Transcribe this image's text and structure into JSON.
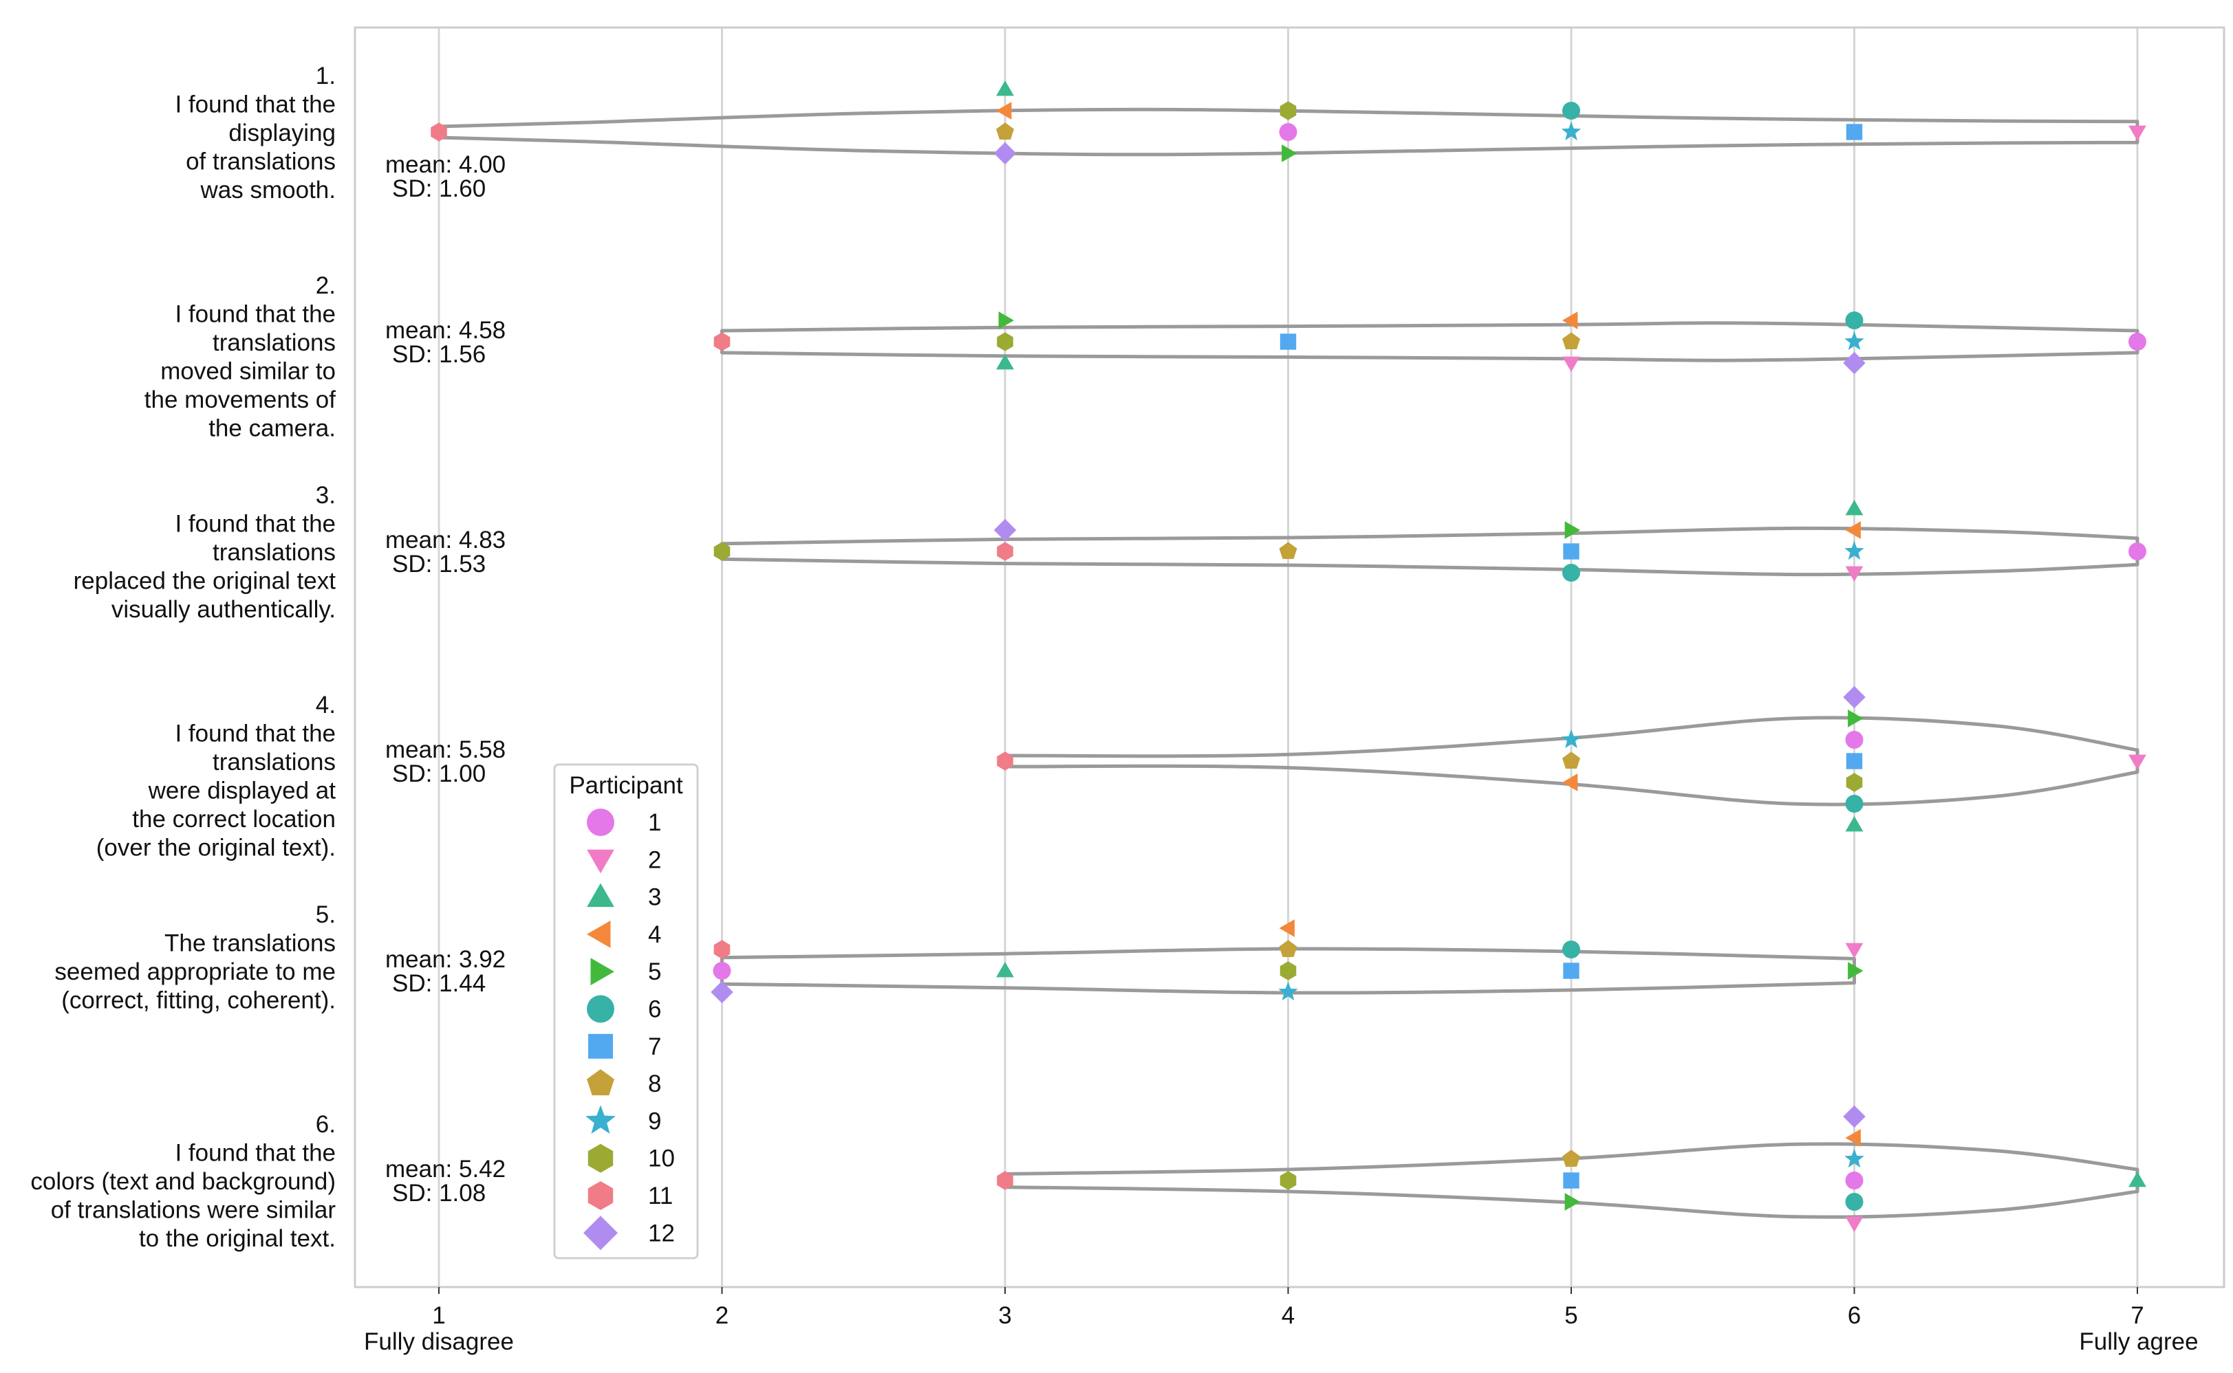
{
  "chart_data": {
    "type": "violin-strip",
    "xlim": [
      1,
      7
    ],
    "x_ticks": [
      1,
      2,
      3,
      4,
      5,
      6,
      7
    ],
    "x_end_labels": {
      "left": "Fully disagree",
      "right": "Fully agree"
    },
    "legend": {
      "title": "Participant",
      "placement": "bottom-left",
      "entries": [
        {
          "id": 1,
          "label": "1",
          "marker": "circle",
          "color": "#E478E8"
        },
        {
          "id": 2,
          "label": "2",
          "marker": "triangle-down",
          "color": "#F07CC8"
        },
        {
          "id": 3,
          "label": "3",
          "marker": "triangle-up",
          "color": "#3BB98C"
        },
        {
          "id": 4,
          "label": "4",
          "marker": "triangle-left",
          "color": "#F3883A"
        },
        {
          "id": 5,
          "label": "5",
          "marker": "triangle-right",
          "color": "#43B93B"
        },
        {
          "id": 6,
          "label": "6",
          "marker": "circle",
          "color": "#36B2A6"
        },
        {
          "id": 7,
          "label": "7",
          "marker": "square",
          "color": "#52A9F0"
        },
        {
          "id": 8,
          "label": "8",
          "marker": "pentagon",
          "color": "#C4A239"
        },
        {
          "id": 9,
          "label": "9",
          "marker": "star",
          "color": "#39B0CE"
        },
        {
          "id": 10,
          "label": "10",
          "marker": "hexagon",
          "color": "#9BAA33"
        },
        {
          "id": 11,
          "label": "11",
          "marker": "hexagon",
          "color": "#F07C88"
        },
        {
          "id": 12,
          "label": "12",
          "marker": "diamond",
          "color": "#B18CF0"
        }
      ]
    },
    "questions": [
      {
        "number": "1.",
        "lines": [
          "I found that the",
          "displaying",
          "of translations",
          "was smooth."
        ],
        "mean": "mean: 4.00",
        "sd": "SD: 1.60",
        "range": [
          1,
          7
        ],
        "violin": [
          [
            1,
            0.5
          ],
          [
            1.5,
            0.85
          ],
          [
            2.5,
            1.7
          ],
          [
            3.5,
            2.05
          ],
          [
            4.5,
            1.7
          ],
          [
            5.5,
            1.25
          ],
          [
            6.5,
            1.0
          ],
          [
            7,
            0.95
          ]
        ],
        "responses": [
          {
            "p": 11,
            "v": 1,
            "s": 0
          },
          {
            "p": 3,
            "v": 3,
            "s": -2
          },
          {
            "p": 4,
            "v": 3,
            "s": -1
          },
          {
            "p": 8,
            "v": 3,
            "s": 0
          },
          {
            "p": 12,
            "v": 3,
            "s": 1
          },
          {
            "p": 10,
            "v": 4,
            "s": -1
          },
          {
            "p": 1,
            "v": 4,
            "s": 0
          },
          {
            "p": 5,
            "v": 4,
            "s": 1
          },
          {
            "p": 6,
            "v": 5,
            "s": -1
          },
          {
            "p": 9,
            "v": 5,
            "s": 0
          },
          {
            "p": 7,
            "v": 6,
            "s": 0
          },
          {
            "p": 2,
            "v": 7,
            "s": 0
          }
        ]
      },
      {
        "number": "2.",
        "lines": [
          "I found that the",
          "translations",
          "moved similar to",
          "the movements of",
          "the camera."
        ],
        "mean": "mean: 4.58",
        "sd": "SD: 1.56",
        "range": [
          2,
          7
        ],
        "violin": [
          [
            2,
            1.0
          ],
          [
            3,
            1.3
          ],
          [
            4,
            1.4
          ],
          [
            5,
            1.55
          ],
          [
            5.5,
            1.7
          ],
          [
            6,
            1.55
          ],
          [
            7,
            1.0
          ]
        ],
        "responses": [
          {
            "p": 11,
            "v": 2,
            "s": 0
          },
          {
            "p": 5,
            "v": 3,
            "s": -1
          },
          {
            "p": 10,
            "v": 3,
            "s": 0
          },
          {
            "p": 3,
            "v": 3,
            "s": 1
          },
          {
            "p": 7,
            "v": 4,
            "s": 0
          },
          {
            "p": 4,
            "v": 5,
            "s": -1
          },
          {
            "p": 8,
            "v": 5,
            "s": 0
          },
          {
            "p": 2,
            "v": 5,
            "s": 1
          },
          {
            "p": 6,
            "v": 6,
            "s": -1
          },
          {
            "p": 9,
            "v": 6,
            "s": 0
          },
          {
            "p": 12,
            "v": 6,
            "s": 1
          },
          {
            "p": 1,
            "v": 7,
            "s": 0
          }
        ]
      },
      {
        "number": "3.",
        "lines": [
          "I found that the",
          "translations",
          "replaced the original text",
          "visually authentically."
        ],
        "mean": "mean: 4.83",
        "sd": "SD: 1.53",
        "range": [
          2,
          7
        ],
        "violin": [
          [
            2,
            0.7
          ],
          [
            3,
            1.1
          ],
          [
            4,
            1.25
          ],
          [
            5,
            1.65
          ],
          [
            5.8,
            2.1
          ],
          [
            6.5,
            1.8
          ],
          [
            7,
            1.2
          ]
        ],
        "responses": [
          {
            "p": 10,
            "v": 2,
            "s": 0
          },
          {
            "p": 12,
            "v": 3,
            "s": -1
          },
          {
            "p": 11,
            "v": 3,
            "s": 0
          },
          {
            "p": 8,
            "v": 4,
            "s": 0
          },
          {
            "p": 5,
            "v": 5,
            "s": -1
          },
          {
            "p": 7,
            "v": 5,
            "s": 0
          },
          {
            "p": 6,
            "v": 5,
            "s": 1
          },
          {
            "p": 3,
            "v": 6,
            "s": -2
          },
          {
            "p": 4,
            "v": 6,
            "s": -1
          },
          {
            "p": 9,
            "v": 6,
            "s": 0
          },
          {
            "p": 2,
            "v": 6,
            "s": 1
          },
          {
            "p": 1,
            "v": 7,
            "s": 0
          }
        ]
      },
      {
        "number": "4.",
        "lines": [
          "I found that the",
          "translations",
          "were displayed at",
          "the correct location",
          "(over the original text)."
        ],
        "mean": "mean: 5.58",
        "sd": "SD: 1.00",
        "range": [
          3,
          7
        ],
        "violin": [
          [
            3,
            0.5
          ],
          [
            4,
            0.6
          ],
          [
            5,
            2.1
          ],
          [
            5.8,
            3.9
          ],
          [
            6.5,
            3.2
          ],
          [
            7,
            1.0
          ]
        ],
        "responses": [
          {
            "p": 11,
            "v": 3,
            "s": 0
          },
          {
            "p": 9,
            "v": 5,
            "s": -1
          },
          {
            "p": 8,
            "v": 5,
            "s": 0
          },
          {
            "p": 4,
            "v": 5,
            "s": 1
          },
          {
            "p": 12,
            "v": 6,
            "s": -3
          },
          {
            "p": 5,
            "v": 6,
            "s": -2
          },
          {
            "p": 1,
            "v": 6,
            "s": -1
          },
          {
            "p": 7,
            "v": 6,
            "s": 0
          },
          {
            "p": 10,
            "v": 6,
            "s": 1
          },
          {
            "p": 6,
            "v": 6,
            "s": 2
          },
          {
            "p": 3,
            "v": 6,
            "s": 3
          },
          {
            "p": 2,
            "v": 7,
            "s": 0
          }
        ]
      },
      {
        "number": "5.",
        "lines": [
          "The translations",
          "seemed appropriate to me",
          "(correct, fitting, coherent)."
        ],
        "mean": "mean: 3.92",
        "sd": "SD: 1.44",
        "range": [
          2,
          6
        ],
        "violin": [
          [
            2,
            1.2
          ],
          [
            3,
            1.55
          ],
          [
            4,
            2.0
          ],
          [
            5,
            1.75
          ],
          [
            6,
            1.1
          ]
        ],
        "responses": [
          {
            "p": 11,
            "v": 2,
            "s": -1
          },
          {
            "p": 1,
            "v": 2,
            "s": 0
          },
          {
            "p": 12,
            "v": 2,
            "s": 1
          },
          {
            "p": 3,
            "v": 3,
            "s": 0
          },
          {
            "p": 4,
            "v": 4,
            "s": -2
          },
          {
            "p": 8,
            "v": 4,
            "s": -1
          },
          {
            "p": 10,
            "v": 4,
            "s": 0
          },
          {
            "p": 9,
            "v": 4,
            "s": 1
          },
          {
            "p": 6,
            "v": 5,
            "s": -1
          },
          {
            "p": 7,
            "v": 5,
            "s": 0
          },
          {
            "p": 2,
            "v": 6,
            "s": -1
          },
          {
            "p": 5,
            "v": 6,
            "s": 0
          }
        ]
      },
      {
        "number": "6.",
        "lines": [
          "I found that the",
          "colors (text and background)",
          "of translations were similar",
          "to the original text."
        ],
        "mean": "mean: 5.42",
        "sd": "SD: 1.08",
        "range": [
          3,
          7
        ],
        "violin": [
          [
            3,
            0.6
          ],
          [
            4,
            1.0
          ],
          [
            5,
            2.0
          ],
          [
            5.8,
            3.3
          ],
          [
            6.5,
            2.7
          ],
          [
            7,
            1.0
          ]
        ],
        "responses": [
          {
            "p": 11,
            "v": 3,
            "s": 0
          },
          {
            "p": 10,
            "v": 4,
            "s": 0
          },
          {
            "p": 8,
            "v": 5,
            "s": -1
          },
          {
            "p": 7,
            "v": 5,
            "s": 0
          },
          {
            "p": 5,
            "v": 5,
            "s": 1
          },
          {
            "p": 12,
            "v": 6,
            "s": -3
          },
          {
            "p": 4,
            "v": 6,
            "s": -2
          },
          {
            "p": 9,
            "v": 6,
            "s": -1
          },
          {
            "p": 1,
            "v": 6,
            "s": 0
          },
          {
            "p": 6,
            "v": 6,
            "s": 1
          },
          {
            "p": 2,
            "v": 6,
            "s": 2
          },
          {
            "p": 3,
            "v": 7,
            "s": 0
          }
        ]
      }
    ]
  }
}
